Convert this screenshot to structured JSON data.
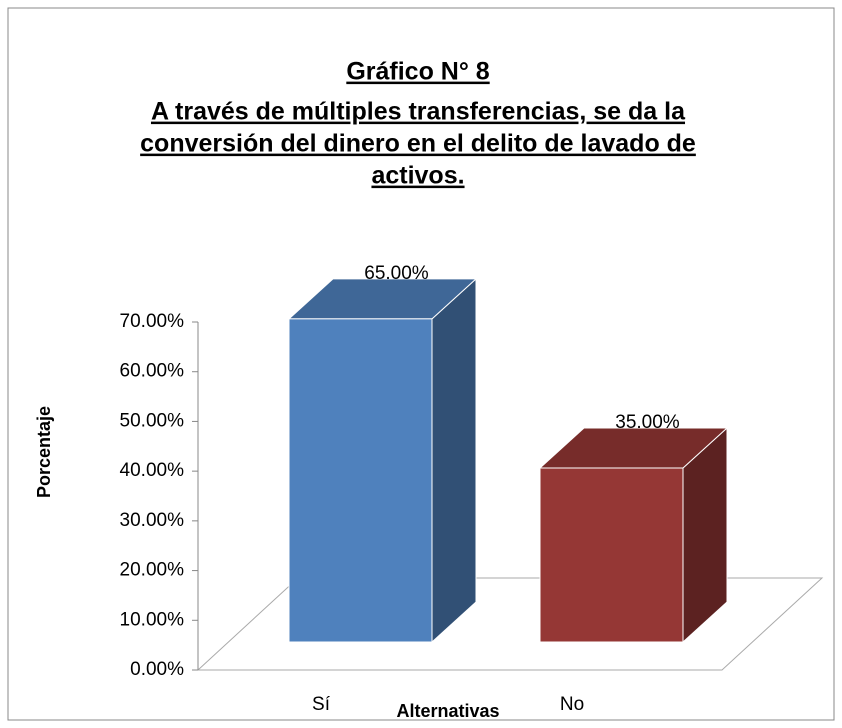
{
  "chart_data": {
    "type": "bar3d",
    "title": [
      "Gráfico N° 8",
      "A través de múltiples transferencias, se da la",
      "conversión del dinero en el delito de lavado de",
      "activos."
    ],
    "xlabel": "Alternativas",
    "ylabel": "Porcentaje",
    "categories": [
      "Sí",
      "No"
    ],
    "values": [
      65,
      35
    ],
    "value_labels": [
      "65.00%",
      "35.00%"
    ],
    "colors": [
      "#4f81bd",
      "#953735"
    ],
    "ylim": [
      0,
      70
    ],
    "yticks": [
      {
        "value": 0,
        "label": "0.00%"
      },
      {
        "value": 10,
        "label": "10.00%"
      },
      {
        "value": 20,
        "label": "20.00%"
      },
      {
        "value": 30,
        "label": "30.00%"
      },
      {
        "value": 40,
        "label": "40.00%"
      },
      {
        "value": 50,
        "label": "50.00%"
      },
      {
        "value": 60,
        "label": "60.00%"
      },
      {
        "value": 70,
        "label": "70.00%"
      }
    ]
  }
}
